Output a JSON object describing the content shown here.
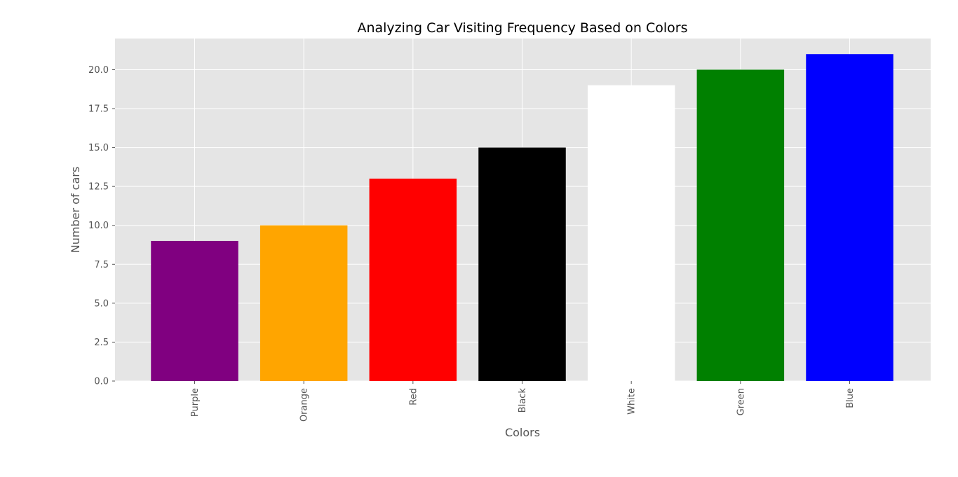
{
  "chart_data": {
    "type": "bar",
    "title": "Analyzing Car Visiting Frequency Based on Colors",
    "xlabel": "Colors",
    "ylabel": "Number of cars",
    "categories": [
      "Purple",
      "Orange",
      "Red",
      "Black",
      "White",
      "Green",
      "Blue"
    ],
    "values": [
      9,
      10,
      13,
      15,
      19,
      20,
      21
    ],
    "bar_colors": [
      "#800080",
      "#ffa500",
      "#ff0000",
      "#000000",
      "#ffffff",
      "#008000",
      "#0000ff"
    ],
    "ylim": [
      0,
      22
    ],
    "yticks": [
      "0.0",
      "2.5",
      "5.0",
      "7.5",
      "10.0",
      "12.5",
      "15.0",
      "17.5",
      "20.0"
    ],
    "grid": true,
    "background": "#e5e5e5",
    "grid_color": "#ffffff"
  }
}
